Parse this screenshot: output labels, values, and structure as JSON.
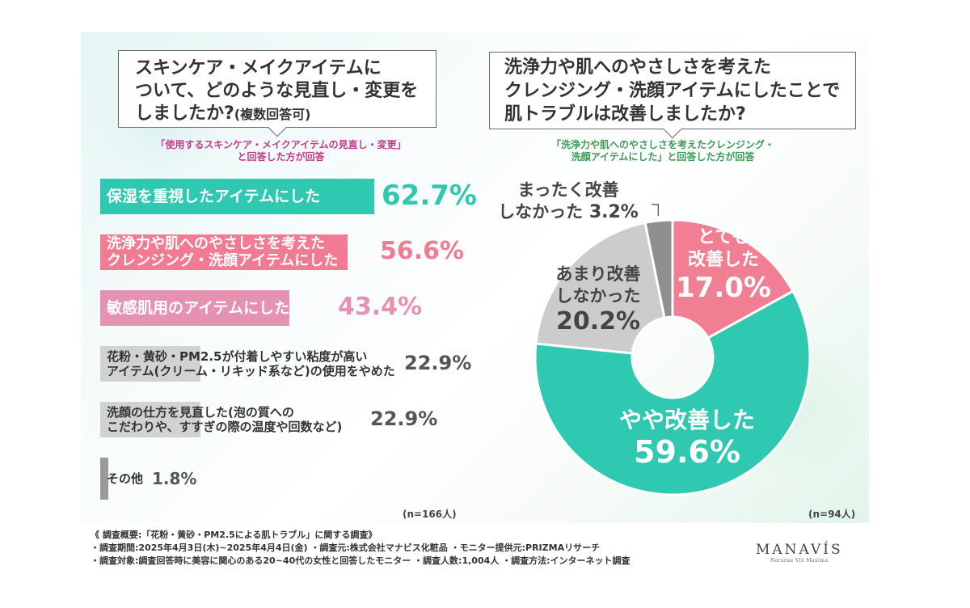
{
  "left_panel": {
    "question_line1": "スキンケア・メイクアイテムに",
    "question_line2": "ついて、どのような見直し・変更を",
    "question_line3": "しましたか?",
    "question_suffix": "(複数回答可)",
    "note_line1": "「使用するスキンケア・メイクアイテムの見直し・変更」",
    "note_line2": "と回答した方が回答",
    "sample": "(n=166人)"
  },
  "right_panel": {
    "question_line1": "洗浄力や肌へのやさしさを考えた",
    "question_line2": "クレンジング・洗顔アイテムにしたことで",
    "question_line3": "肌トラブルは改善しましたか?",
    "note_line1": "「洗浄力や肌へのやさしさを考えたクレンジング・",
    "note_line2": "洗顔アイテムにした」と回答した方が回答",
    "sample": "(n=94人)"
  },
  "chart_data": [
    {
      "type": "bar",
      "categories": [
        "保湿を重視したアイテムにした",
        "洗浄力や肌へのやさしさを考えたクレンジング・洗顔アイテムにした",
        "敏感肌用のアイテムにした",
        "花粉・黄砂・PM2.5が付着しやすい粘度が高いアイテム(クリーム・リキッド系など)の使用をやめた",
        "洗顔の仕方を見直した(泡の質へのこだわりや、すすぎの際の温度や回数など)",
        "その他"
      ],
      "label_lines": [
        [
          "保湿を重視したアイテムにした"
        ],
        [
          "洗浄力や肌へのやさしさを考えた",
          "クレンジング・洗顔アイテムにした"
        ],
        [
          "敏感肌用のアイテムにした"
        ],
        [
          "花粉・黄砂・PM2.5が付着しやすい粘度が高い",
          "アイテム(クリーム・リキッド系など)の使用をやめた"
        ],
        [
          "洗顔の仕方を見直した(泡の質への",
          "こだわりや、すすぎの際の温度や回数など)"
        ],
        [
          "その他"
        ]
      ],
      "values": [
        62.7,
        56.6,
        43.4,
        22.9,
        22.9,
        1.8
      ],
      "value_labels": [
        "62.7%",
        "56.6%",
        "43.4%",
        "22.9%",
        "22.9%",
        "1.8%"
      ],
      "colors": [
        "#2fc8b0",
        "#f07b93",
        "#e592b1",
        "#d2d2d2",
        "#d2d2d2",
        "#9a9a9a"
      ],
      "label_colors": [
        "#ffffff",
        "#ffffff",
        "#ffffff",
        "#333333",
        "#333333",
        "#333333"
      ],
      "pct_colors": [
        "#2fc8b0",
        "#f07b93",
        "#e592b1",
        "#555555",
        "#555555",
        "#555555"
      ],
      "xlim": [
        0,
        100
      ]
    },
    {
      "type": "pie",
      "categories": [
        "とても改善した",
        "やや改善した",
        "あまり改善しなかった",
        "まったく改善しなかった"
      ],
      "label_lines": [
        [
          "とても",
          "改善した"
        ],
        [
          "やや改善した"
        ],
        [
          "あまり改善",
          "しなかった"
        ],
        [
          "まったく改善",
          "しなかった"
        ]
      ],
      "values": [
        17.0,
        59.6,
        20.2,
        3.2
      ],
      "value_labels": [
        "17.0%",
        "59.6%",
        "20.2%",
        "3.2%"
      ],
      "colors": [
        "#f17f94",
        "#2fc8b0",
        "#cccccc",
        "#8f8f8f"
      ]
    }
  ],
  "footer": {
    "line1": "《 調査概要:「花粉・黄砂・PM2.5による肌トラブル」に関する調査》",
    "line2": "・調査期間:2025年4月3日(木)~2025年4月4日(金)  ・調査元:株式会社マナビス化粧品  ・モニター提供元:PRIZMAリサーチ",
    "line3": "・調査対象:調査回答時に美容に関心のある20~40代の女性と回答したモニター  ・調査人数:1,004人  ・調査方法:インターネット調査"
  },
  "logo": {
    "name": "MANAVÍS",
    "tagline": "Naturae Vix Maxima"
  }
}
